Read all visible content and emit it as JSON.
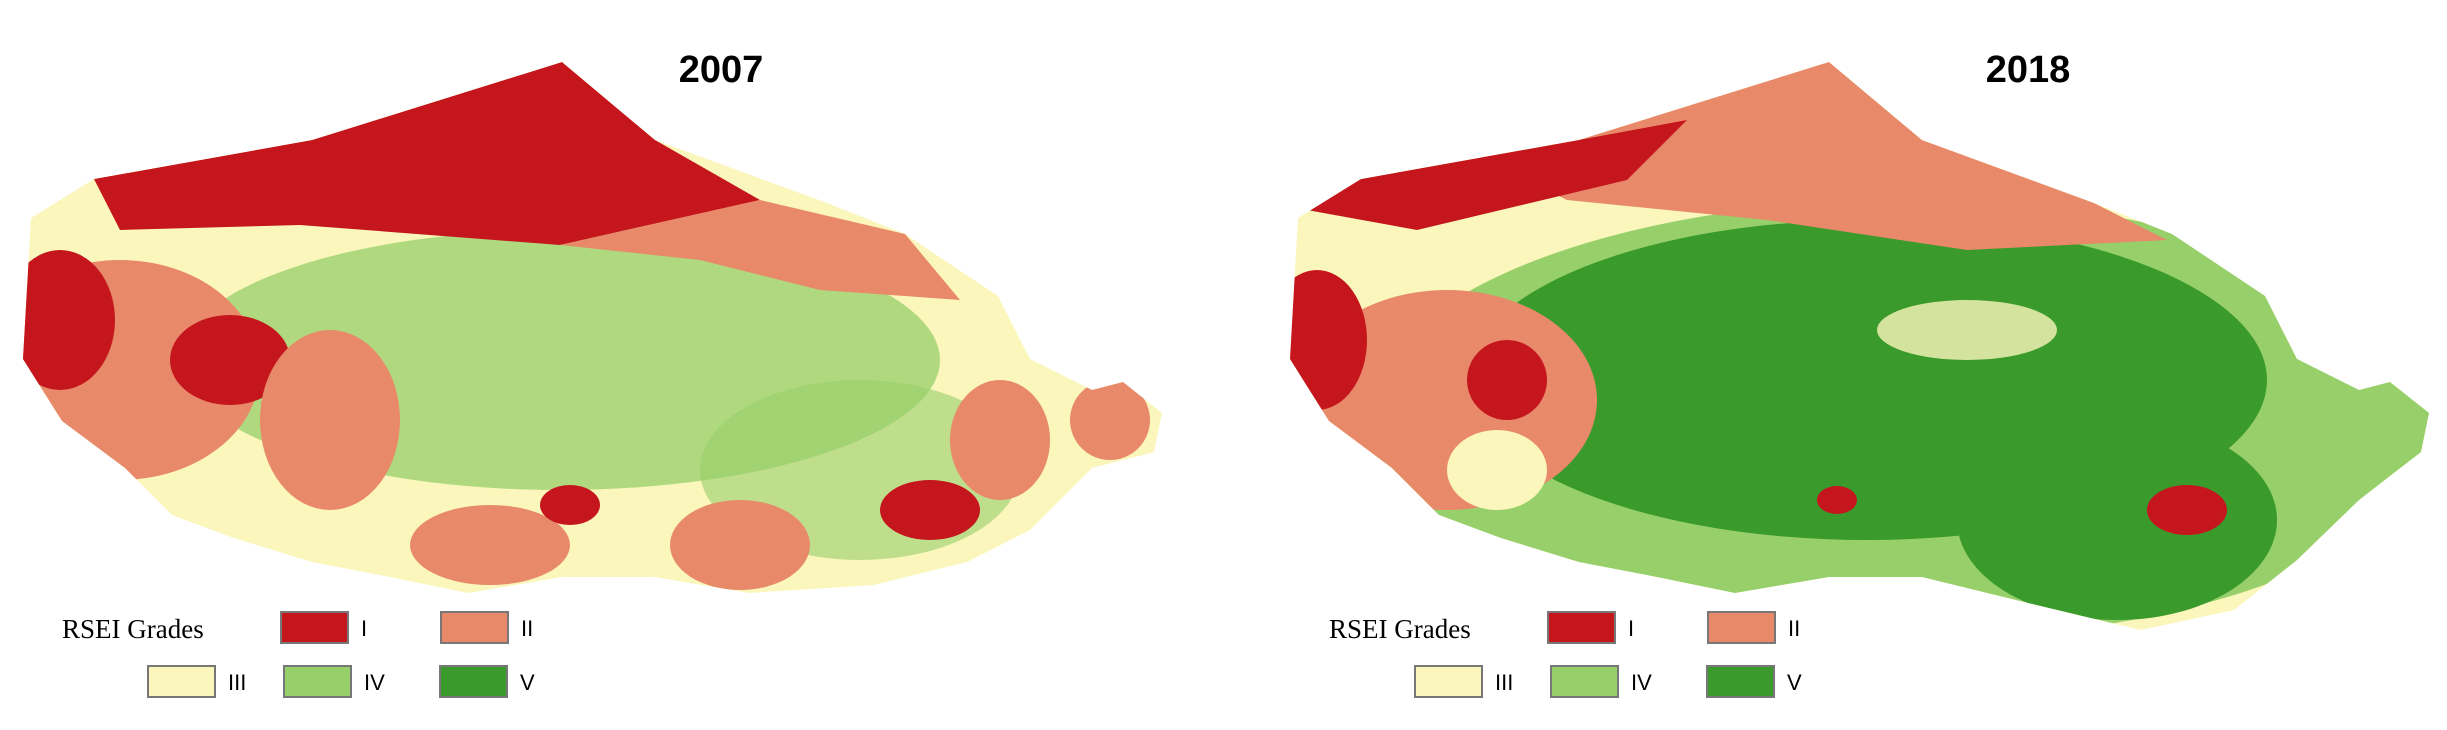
{
  "maps": [
    {
      "title": "2007"
    },
    {
      "title": "2018"
    }
  ],
  "legend": {
    "title": "RSEI Grades",
    "items": [
      {
        "label": "I",
        "color": "#c4161c"
      },
      {
        "label": "II",
        "color": "#e8896a"
      },
      {
        "label": "III",
        "color": "#fbf6bb"
      },
      {
        "label": "IV",
        "color": "#97cf6b"
      },
      {
        "label": "V",
        "color": "#3a9a2c"
      }
    ]
  }
}
